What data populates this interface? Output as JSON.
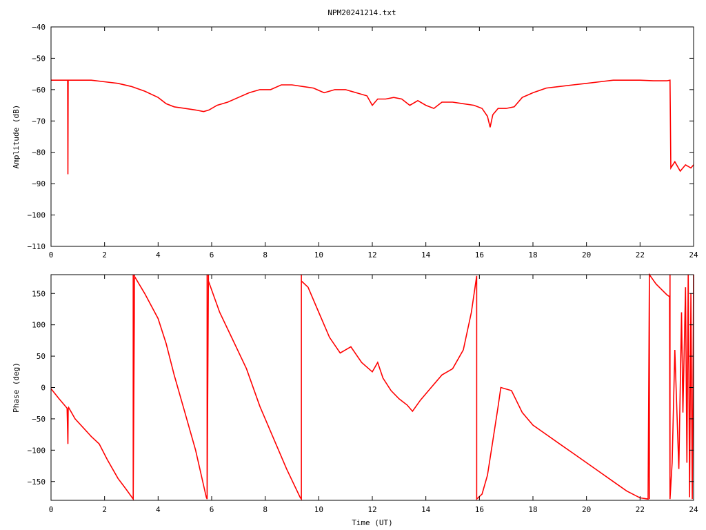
{
  "page_title": "NPM20241214.txt",
  "colors": {
    "series": "#ff0000",
    "axis": "#000000",
    "background": "#ffffff"
  },
  "chart_data": [
    {
      "type": "line",
      "title": "NPM20241214.txt",
      "xlabel": "",
      "ylabel": "Amplitude (dB)",
      "xlim": [
        0,
        24
      ],
      "ylim": [
        -110,
        -40
      ],
      "xticks": [
        0,
        2,
        4,
        6,
        8,
        10,
        12,
        14,
        16,
        18,
        20,
        22,
        24
      ],
      "yticks": [
        -110,
        -100,
        -90,
        -80,
        -70,
        -60,
        -50,
        -40
      ],
      "grid": false,
      "legend": "none",
      "series": [
        {
          "x": [
            0,
            0.62,
            0.63,
            0.64,
            0.65,
            1.0,
            1.5,
            2.0,
            2.5,
            3.0,
            3.5,
            4.0,
            4.3,
            4.6,
            5.0,
            5.4,
            5.7,
            5.9,
            6.2,
            6.6,
            7.0,
            7.4,
            7.8,
            8.2,
            8.6,
            9.0,
            9.4,
            9.8,
            10.2,
            10.6,
            11.0,
            11.4,
            11.8,
            12.0,
            12.2,
            12.5,
            12.8,
            13.1,
            13.4,
            13.7,
            14.0,
            14.3,
            14.6,
            15.0,
            15.4,
            15.8,
            16.1,
            16.3,
            16.4,
            16.5,
            16.7,
            17.0,
            17.3,
            17.6,
            18.0,
            18.5,
            19.0,
            19.5,
            20.0,
            20.5,
            21.0,
            21.5,
            22.0,
            22.5,
            23.0,
            23.12,
            23.15,
            23.3,
            23.5,
            23.7,
            23.9,
            24.0
          ],
          "y": [
            -57,
            -57,
            -87,
            -57,
            -57,
            -57,
            -57,
            -57.5,
            -58,
            -59,
            -60.5,
            -62.5,
            -64.5,
            -65.5,
            -66,
            -66.5,
            -67,
            -66.5,
            -65,
            -64,
            -62.5,
            -61,
            -60,
            -60,
            -58.5,
            -58.5,
            -59,
            -59.5,
            -61,
            -60,
            -60,
            -61,
            -62,
            -65,
            -63,
            -63,
            -62.5,
            -63,
            -65,
            -63.5,
            -65,
            -66,
            -64,
            -64,
            -64.5,
            -65,
            -66,
            -68.5,
            -72,
            -68,
            -66,
            -66,
            -65.5,
            -62.5,
            -61,
            -59.5,
            -59,
            -58.5,
            -58,
            -57.5,
            -57,
            -57,
            -57,
            -57.2,
            -57.2,
            -57,
            -85,
            -83,
            -86,
            -84,
            -85,
            -84
          ]
        }
      ]
    },
    {
      "type": "line",
      "title": "",
      "xlabel": "Time (UT)",
      "ylabel": "Phase (deg)",
      "xlim": [
        0,
        24
      ],
      "ylim": [
        -180,
        180
      ],
      "xticks": [
        0,
        2,
        4,
        6,
        8,
        10,
        12,
        14,
        16,
        18,
        20,
        22,
        24
      ],
      "yticks": [
        -150,
        -100,
        -50,
        0,
        50,
        100,
        150
      ],
      "grid": false,
      "legend": "none",
      "series": [
        {
          "x": [
            0,
            0.3,
            0.6,
            0.63,
            0.64,
            0.66,
            0.9,
            1.5,
            1.8,
            2.1,
            2.5,
            2.8,
            3.07,
            3.07,
            3.07,
            3.12,
            3.12,
            3.5,
            4.0,
            4.3,
            4.6,
            5.0,
            5.4,
            5.8,
            5.83,
            5.83,
            5.83,
            5.88,
            5.88,
            6.3,
            6.8,
            7.3,
            7.8,
            8.3,
            8.8,
            9.3,
            9.35,
            9.35,
            9.35,
            9.6,
            10.0,
            10.4,
            10.8,
            11.2,
            11.6,
            12.0,
            12.2,
            12.4,
            12.7,
            13.0,
            13.3,
            13.5,
            13.8,
            14.2,
            14.6,
            15.0,
            15.4,
            15.7,
            15.9,
            15.9,
            15.9,
            16.1,
            16.3,
            16.5,
            16.7,
            16.8,
            17.2,
            17.6,
            18.0,
            18.5,
            19.0,
            19.5,
            20.0,
            20.5,
            21.0,
            21.5,
            22.0,
            22.3,
            22.35,
            22.35,
            22.35,
            22.6,
            23.0,
            23.1,
            23.12,
            23.12,
            23.12,
            23.2,
            23.3,
            23.45,
            23.55,
            23.6,
            23.7,
            23.75,
            23.8,
            23.85,
            23.9,
            23.95,
            24.0
          ],
          "y": [
            -2,
            -18,
            -33,
            -90,
            -35,
            -32,
            -50,
            -78,
            -90,
            -115,
            -145,
            -162,
            -178,
            180,
            -178,
            180,
            177,
            150,
            110,
            70,
            20,
            -40,
            -100,
            -175,
            -178,
            180,
            -178,
            180,
            170,
            120,
            75,
            30,
            -30,
            -80,
            -130,
            -175,
            -178,
            180,
            170,
            160,
            120,
            80,
            55,
            65,
            40,
            25,
            40,
            15,
            -5,
            -18,
            -28,
            -38,
            -20,
            0,
            20,
            30,
            60,
            120,
            178,
            -178,
            -178,
            -170,
            -140,
            -85,
            -30,
            0,
            -5,
            -40,
            -60,
            -75,
            -90,
            -105,
            -120,
            -135,
            -150,
            -165,
            -176,
            -178,
            180,
            -178,
            180,
            165,
            148,
            145,
            -178,
            180,
            -178,
            -120,
            60,
            -130,
            120,
            -40,
            160,
            -120,
            180,
            -175,
            150,
            -178,
            180
          ]
        }
      ]
    }
  ]
}
